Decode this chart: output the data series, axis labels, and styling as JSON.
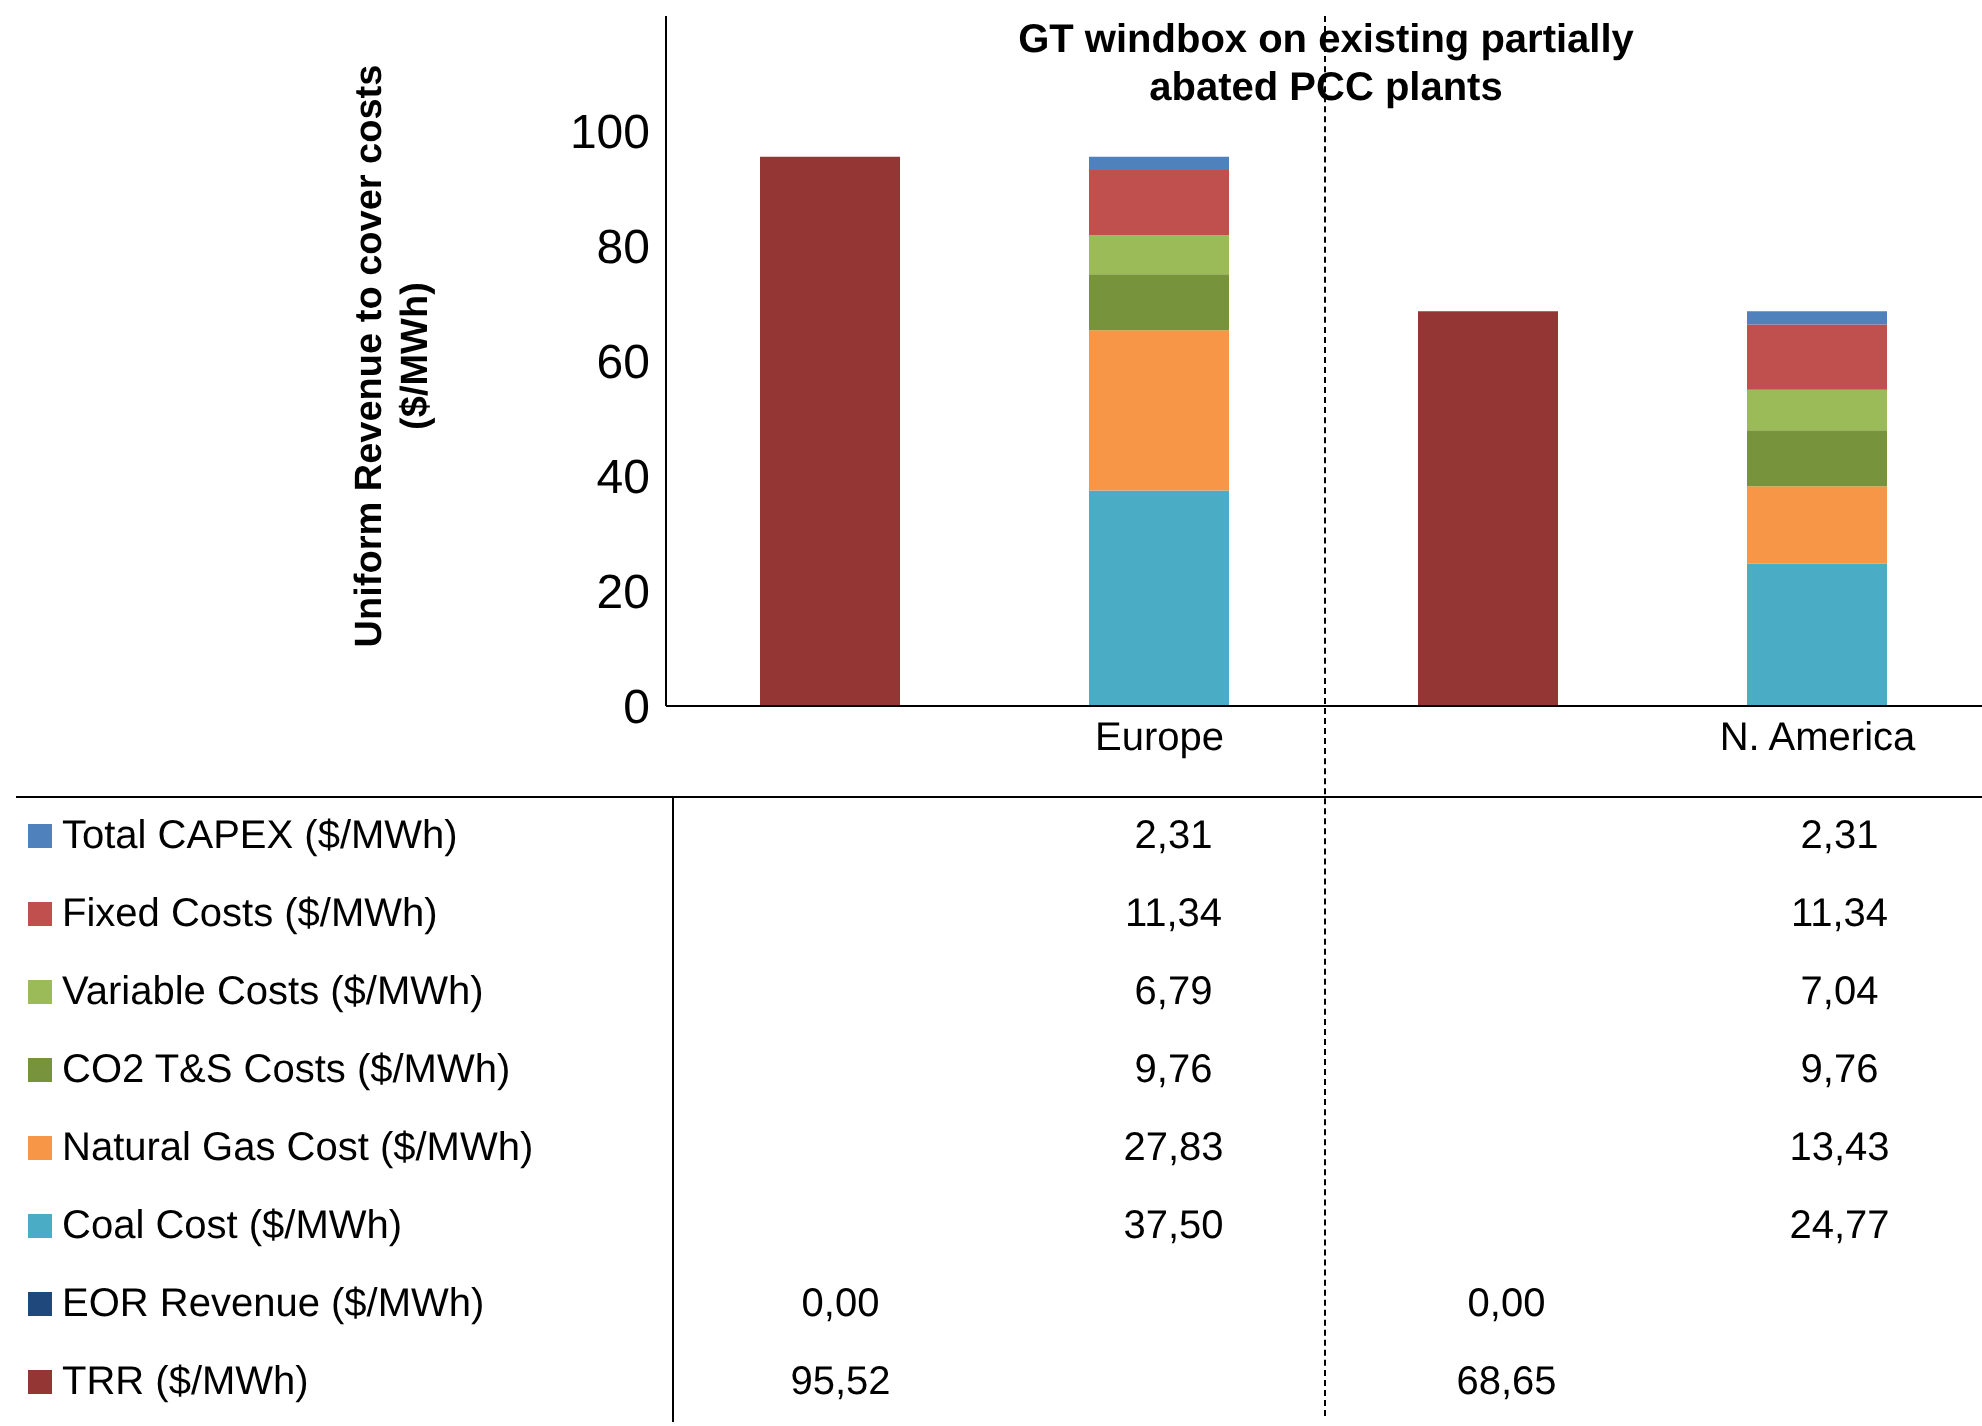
{
  "chart_data": {
    "type": "bar",
    "stacked": true,
    "title": "GT windbox on existing partially abated PCC plants",
    "ylabel": "Uniform Revenue to cover costs ($/MWh)",
    "categories": [
      null,
      "Europe",
      null,
      "N. America"
    ],
    "ylim": [
      0,
      120
    ],
    "yticks": [
      0,
      20,
      40,
      60,
      80,
      100
    ],
    "legend": "bottom",
    "series": [
      {
        "name": "TRR ($/MWh)",
        "color": "#943634",
        "values": [
          95.52,
          null,
          68.65,
          null
        ],
        "value_labels": [
          "95,52",
          null,
          "68,65",
          null
        ]
      },
      {
        "name": "EOR Revenue ($/MWh)",
        "color": "#1f497d",
        "values": [
          0,
          null,
          0,
          null
        ],
        "value_labels": [
          "0,00",
          null,
          "0,00",
          null
        ]
      },
      {
        "name": "Coal Cost ($/MWh)",
        "color": "#4bacc6",
        "values": [
          null,
          37.5,
          null,
          24.77
        ],
        "value_labels": [
          null,
          "37,50",
          null,
          "24,77"
        ]
      },
      {
        "name": "Natural Gas Cost ($/MWh)",
        "color": "#f79646",
        "values": [
          null,
          27.83,
          null,
          13.43
        ],
        "value_labels": [
          null,
          "27,83",
          null,
          "13,43"
        ]
      },
      {
        "name": "CO2 T&S Costs ($/MWh)",
        "color": "#77933c",
        "values": [
          null,
          9.76,
          null,
          9.76
        ],
        "value_labels": [
          null,
          "9,76",
          null,
          "9,76"
        ]
      },
      {
        "name": "Variable Costs ($/MWh)",
        "color": "#9bbb59",
        "values": [
          null,
          6.79,
          null,
          7.04
        ],
        "value_labels": [
          null,
          "6,79",
          null,
          "7,04"
        ]
      },
      {
        "name": "Fixed Costs ($/MWh)",
        "color": "#c0504d",
        "values": [
          null,
          11.34,
          null,
          11.34
        ],
        "value_labels": [
          null,
          "11,34",
          null,
          "11,34"
        ]
      },
      {
        "name": "Total CAPEX ($/MWh)",
        "color": "#4f81bd",
        "values": [
          null,
          2.31,
          null,
          2.31
        ],
        "value_labels": [
          null,
          "2,31",
          null,
          "2,31"
        ]
      }
    ]
  }
}
